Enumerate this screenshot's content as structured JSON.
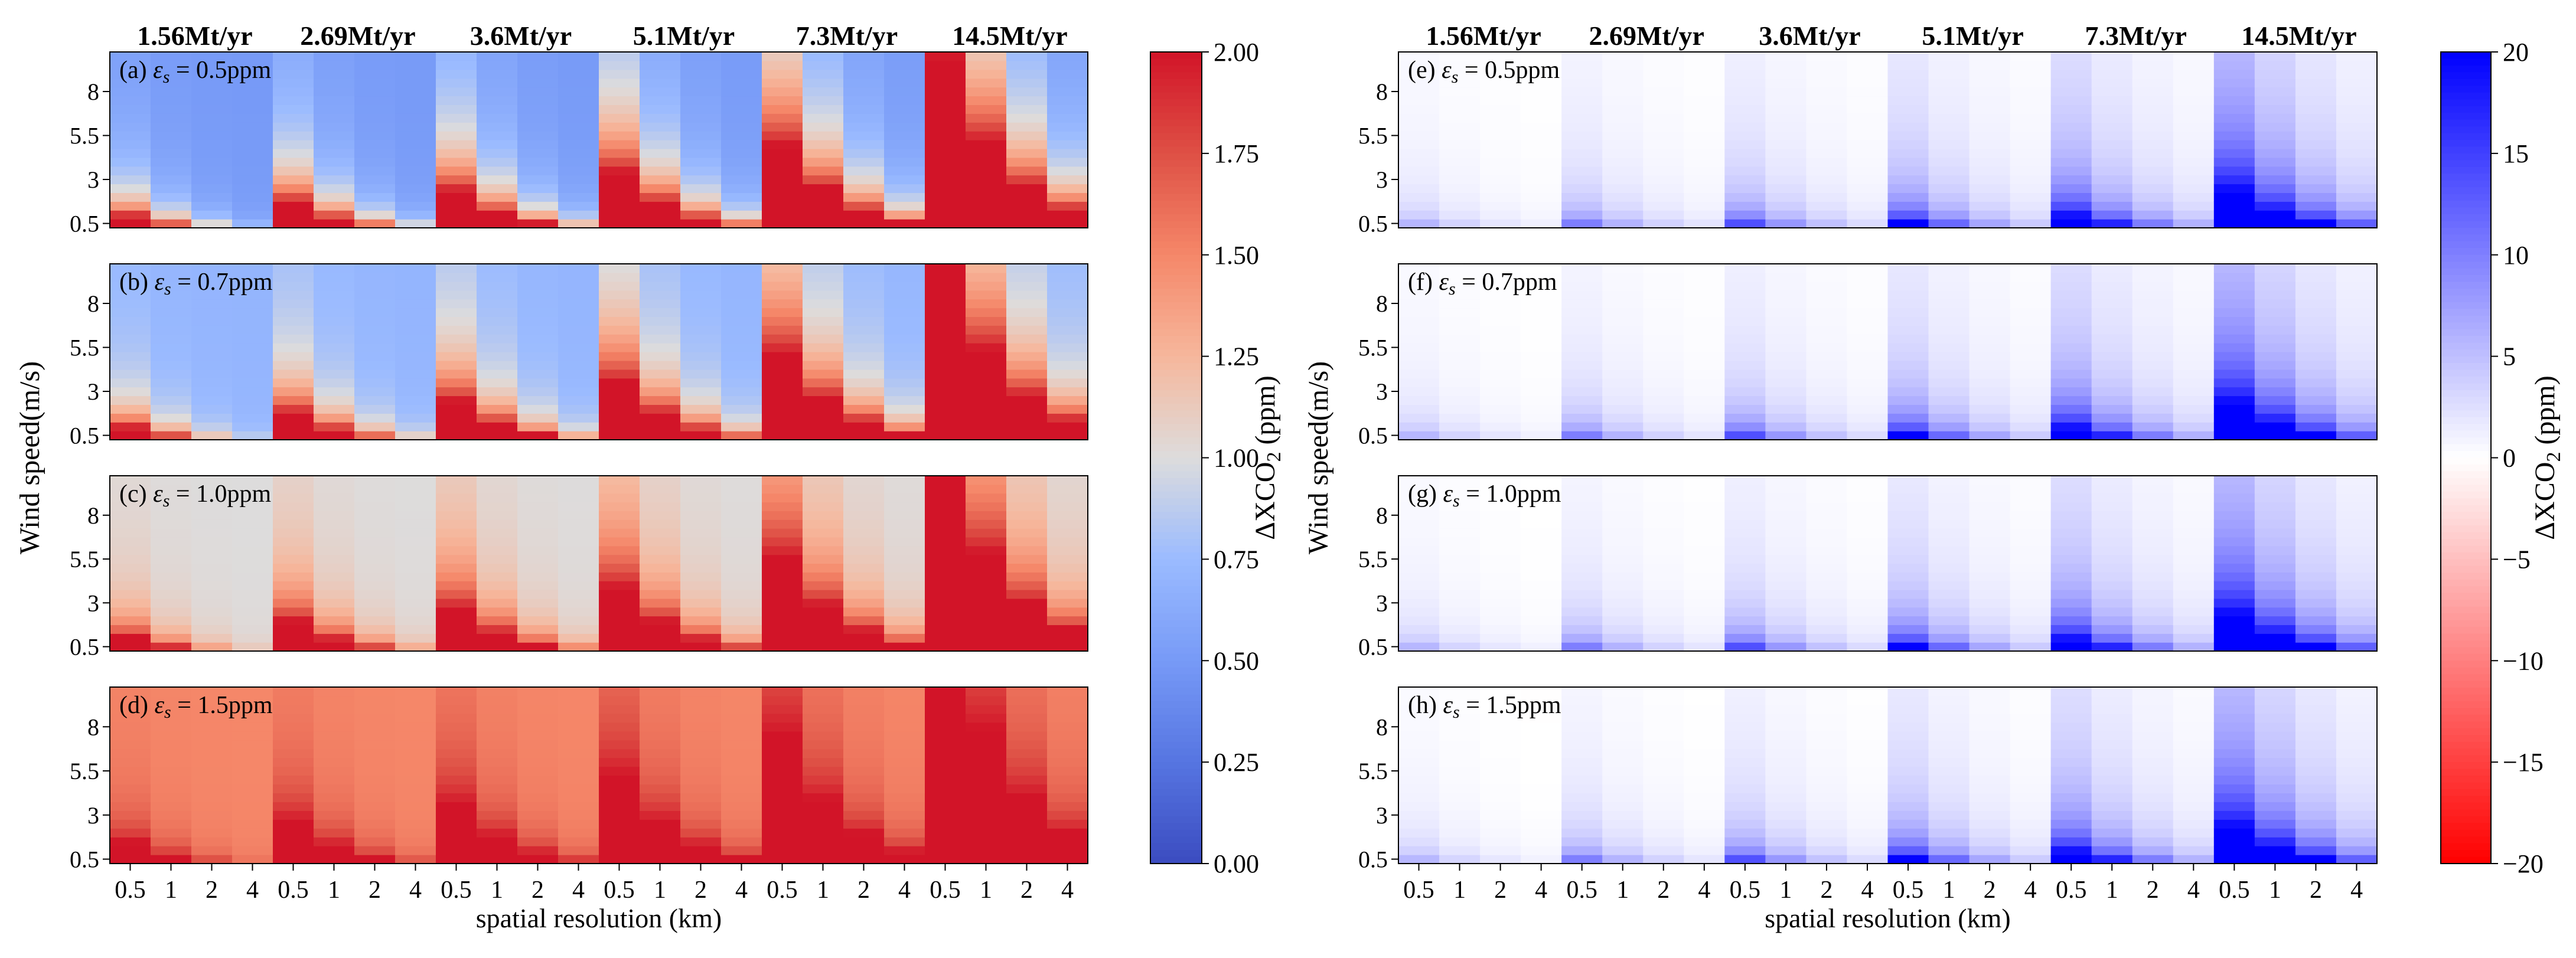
{
  "chart_data": {
    "type": "heatmap",
    "title": "",
    "emission_groups": [
      "1.56Mt/yr",
      "2.69Mt/yr",
      "3.6Mt/yr",
      "5.1Mt/yr",
      "7.3Mt/yr",
      "14.5Mt/yr"
    ],
    "emission_values_Mt_per_yr": [
      1.56,
      2.69,
      3.6,
      5.1,
      7.3,
      14.5
    ],
    "resolution_ticks": [
      "0.5",
      "1",
      "2",
      "4"
    ],
    "resolution_values_km": [
      0.5,
      1,
      2,
      4
    ],
    "wind_ticks": [
      "0.5",
      "3",
      "5.5",
      "8"
    ],
    "wind_range_m_s": [
      0.5,
      10
    ],
    "wind_rows": 20,
    "xlabel": "spatial resolution (km)",
    "ylabel": "Wind speed(m/s)",
    "left_colorbar": {
      "label_prefix": "ΔXCO",
      "label_sub": "2",
      "label_suffix": " (ppm)",
      "range": [
        0,
        2
      ],
      "colormap": "coolwarm",
      "ticks": [
        "0.00",
        "0.25",
        "0.50",
        "0.75",
        "1.00",
        "1.25",
        "1.50",
        "1.75",
        "2.00"
      ],
      "tick_values": [
        0,
        0.25,
        0.5,
        0.75,
        1.0,
        1.25,
        1.5,
        1.75,
        2.0
      ]
    },
    "right_colorbar": {
      "label_prefix": "ΔXCO",
      "label_sub": "2",
      "label_suffix": " (ppm)",
      "range": [
        -20,
        20
      ],
      "colormap": "bwr_r",
      "ticks": [
        "20",
        "15",
        "10",
        "5",
        "0",
        "−5",
        "−10",
        "−15",
        "−20"
      ],
      "tick_values": [
        20,
        15,
        10,
        5,
        0,
        -5,
        -10,
        -15,
        -20
      ]
    },
    "left_panels": [
      {
        "tag": "(a)",
        "eps_text": " = 0.5ppm",
        "eps_ppm": 0.5
      },
      {
        "tag": "(b)",
        "eps_text": " = 0.7ppm",
        "eps_ppm": 0.7
      },
      {
        "tag": "(c)",
        "eps_text": " = 1.0ppm",
        "eps_ppm": 1.0
      },
      {
        "tag": "(d)",
        "eps_text": " = 1.5ppm",
        "eps_ppm": 1.5
      }
    ],
    "right_panels": [
      {
        "tag": "(e)",
        "eps_text": " = 0.5ppm",
        "eps_ppm": 0.5
      },
      {
        "tag": "(f)",
        "eps_text": " = 0.7ppm",
        "eps_ppm": 0.7
      },
      {
        "tag": "(g)",
        "eps_text": " = 1.0ppm",
        "eps_ppm": 1.0
      },
      {
        "tag": "(h)",
        "eps_text": " = 1.5ppm",
        "eps_ppm": 1.5
      }
    ],
    "eps_symbol": "ε",
    "eps_sub": "s"
  }
}
